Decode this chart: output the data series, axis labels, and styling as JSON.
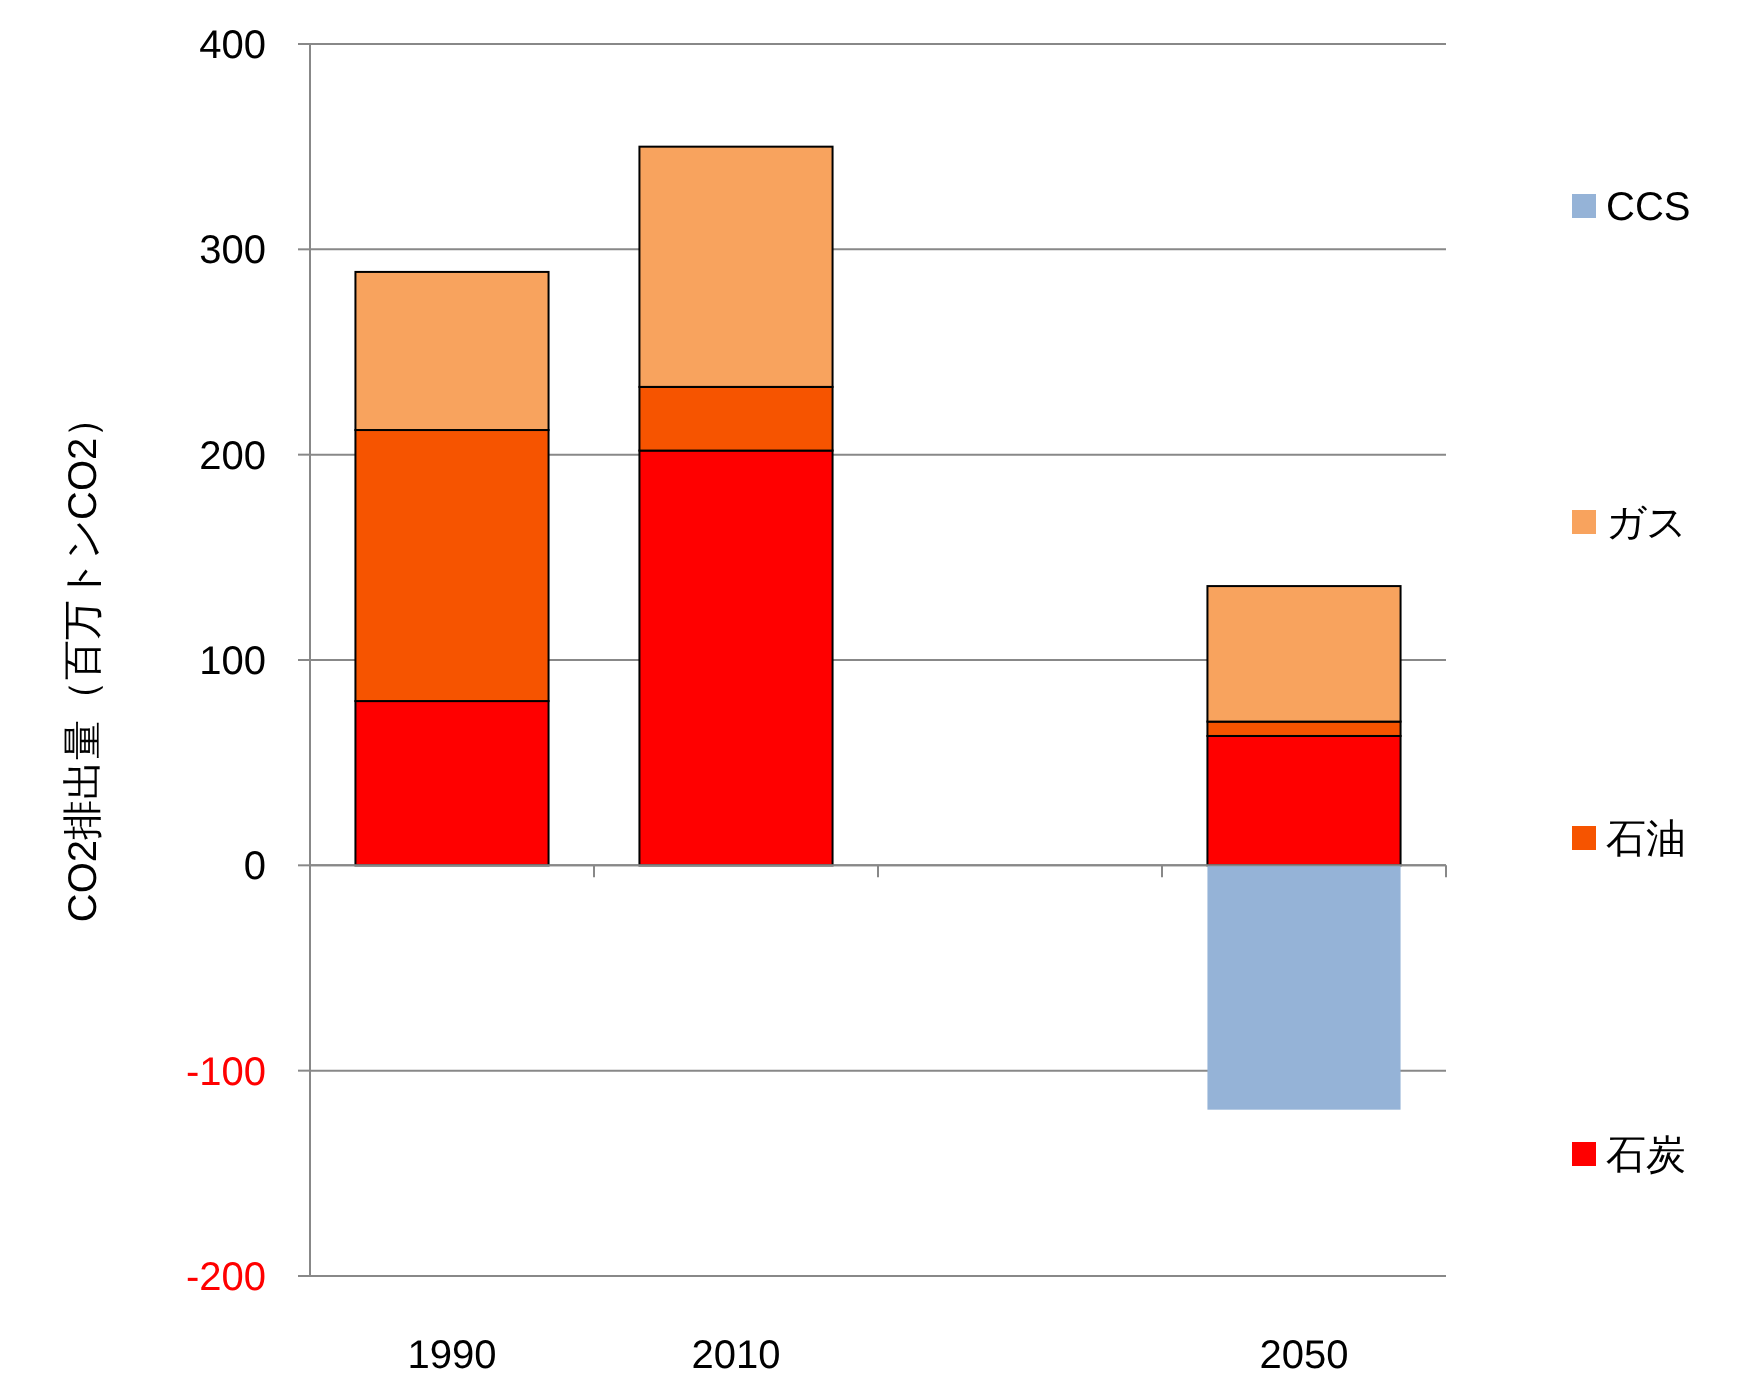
{
  "chart_data": {
    "type": "bar",
    "stacked": true,
    "ylabel": "CO2排出量（百万トンCO2）",
    "categories": [
      "1990",
      "2010",
      null,
      "2050"
    ],
    "series": [
      {
        "name": "石炭",
        "color": "#ff0000",
        "values": [
          80,
          202,
          null,
          63
        ]
      },
      {
        "name": "石油",
        "color": "#f65400",
        "values": [
          132,
          31,
          null,
          7
        ]
      },
      {
        "name": "ガス",
        "color": "#f8a35e",
        "values": [
          77,
          117,
          null,
          66
        ]
      },
      {
        "name": "CCS",
        "color": "#95b3d7",
        "values": [
          null,
          null,
          null,
          -119
        ]
      }
    ],
    "ylim": [
      -200,
      400
    ],
    "yticks": [
      -200,
      -100,
      0,
      100,
      200,
      300,
      400
    ],
    "grid": "y",
    "legend": "right"
  }
}
